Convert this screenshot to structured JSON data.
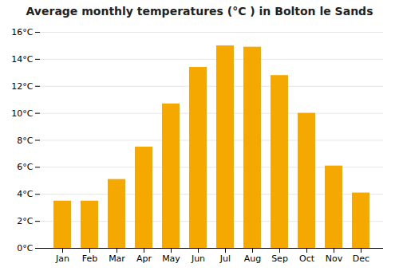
{
  "chart_data": {
    "type": "bar",
    "title": "Average monthly temperatures (°C ) in Bolton le Sands",
    "categories": [
      "Jan",
      "Feb",
      "Mar",
      "Apr",
      "May",
      "Jun",
      "Jul",
      "Aug",
      "Sep",
      "Oct",
      "Nov",
      "Dec"
    ],
    "values": [
      3.5,
      3.5,
      5.1,
      7.5,
      10.7,
      13.4,
      15.0,
      14.9,
      12.8,
      10.0,
      6.1,
      4.1
    ],
    "color": "#F5A800",
    "ylim": [
      0,
      16
    ],
    "yticks": [
      {
        "value": 0,
        "label": "0°C"
      },
      {
        "value": 2,
        "label": "2°C"
      },
      {
        "value": 4,
        "label": "4°C"
      },
      {
        "value": 6,
        "label": "6°C"
      },
      {
        "value": 8,
        "label": "8°C"
      },
      {
        "value": 10,
        "label": "10°C"
      },
      {
        "value": 12,
        "label": "12°C"
      },
      {
        "value": 14,
        "label": "14°C"
      },
      {
        "value": 16,
        "label": "16°C"
      }
    ],
    "grid": true
  }
}
